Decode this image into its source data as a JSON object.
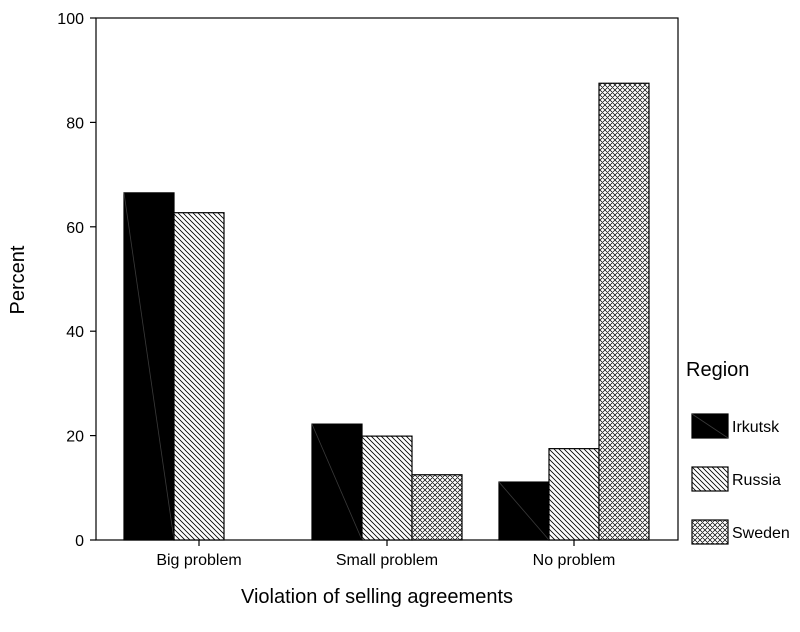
{
  "chart_data": {
    "type": "bar",
    "categories": [
      "Big problem",
      "Small problem",
      "No problem"
    ],
    "series": [
      {
        "name": "Irkutsk",
        "values": [
          66.5,
          22.2,
          11.1
        ],
        "pattern": "solid-black"
      },
      {
        "name": "Russia",
        "values": [
          62.7,
          19.9,
          17.5
        ],
        "pattern": "diagonal-hatch"
      },
      {
        "name": "Sweden",
        "values": [
          0,
          12.5,
          87.5
        ],
        "pattern": "crosshatch"
      }
    ],
    "title": "",
    "xlabel": "Violation of selling agreements",
    "ylabel": "Percent",
    "ylim": [
      0,
      100
    ],
    "yticks": [
      "0",
      "20",
      "40",
      "60",
      "80",
      "100"
    ],
    "legend_title": "Region",
    "legend_position": "right",
    "grid": false
  }
}
